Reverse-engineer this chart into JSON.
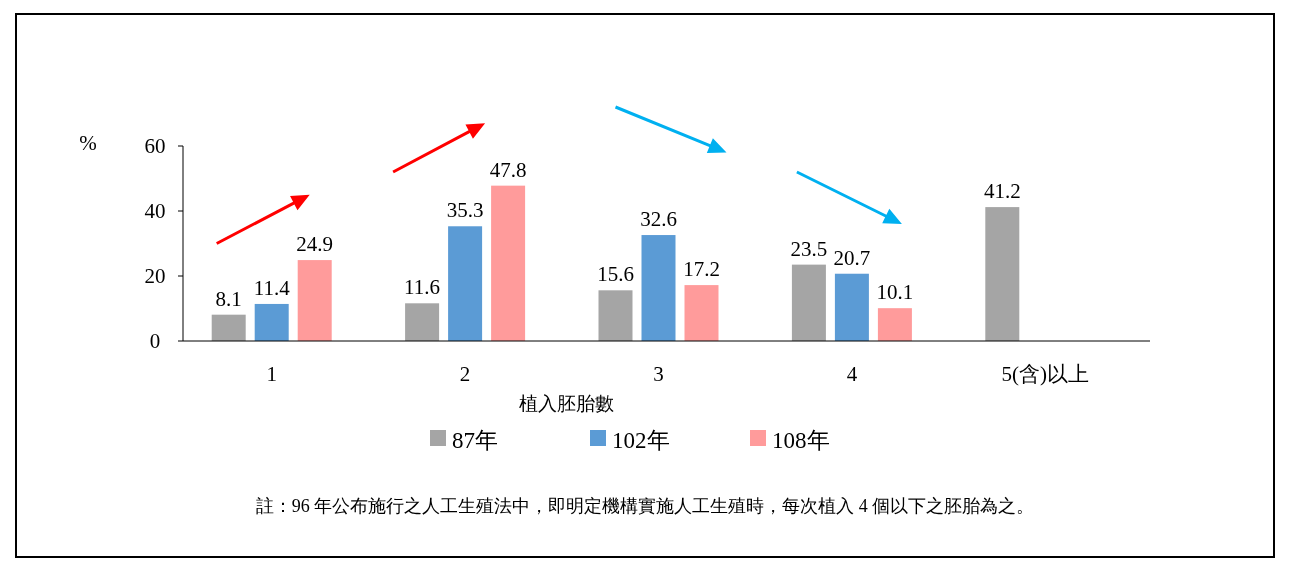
{
  "chart_data": {
    "type": "bar",
    "categories": [
      "1",
      "2",
      "3",
      "4",
      "5(含)以上"
    ],
    "series": [
      {
        "name": "87年",
        "color": "#a5a5a5",
        "values": [
          8.1,
          11.6,
          15.6,
          23.5,
          41.2
        ]
      },
      {
        "name": "102年",
        "color": "#5b9bd5",
        "values": [
          11.4,
          35.3,
          32.6,
          20.7,
          null
        ]
      },
      {
        "name": "108年",
        "color": "#ff9b9b",
        "values": [
          24.9,
          47.8,
          17.2,
          10.1,
          null
        ]
      }
    ],
    "ylim": [
      0,
      60
    ],
    "yticks": [
      0,
      20,
      40,
      60
    ],
    "ylabel": "%",
    "xlabel": "植入胚胎數",
    "data_labels": true,
    "legend": "bottom",
    "grid": false,
    "annotations": [
      "註：96 年公布施行之人工生殖法中，即明定機構實施人工生殖時，每次植入 4 個以下之胚胎為之。"
    ]
  }
}
